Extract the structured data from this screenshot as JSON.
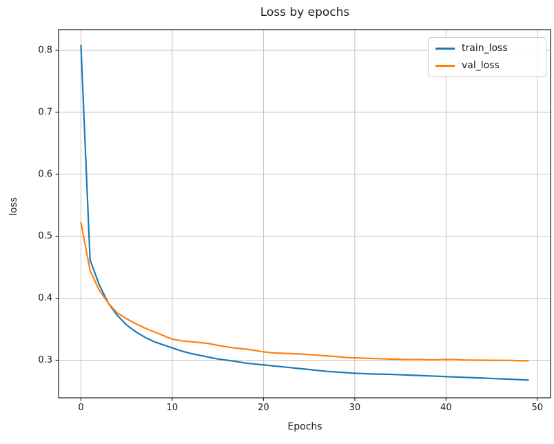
{
  "chart_data": {
    "type": "line",
    "title": "Loss by epochs",
    "xlabel": "Epochs",
    "ylabel": "loss",
    "x": [
      0,
      1,
      2,
      3,
      4,
      5,
      6,
      7,
      8,
      9,
      10,
      11,
      12,
      13,
      14,
      15,
      16,
      17,
      18,
      19,
      20,
      21,
      22,
      23,
      24,
      25,
      26,
      27,
      28,
      29,
      30,
      31,
      32,
      33,
      34,
      35,
      36,
      37,
      38,
      39,
      40,
      41,
      42,
      43,
      44,
      45,
      46,
      47,
      48,
      49
    ],
    "series": [
      {
        "name": "train_loss",
        "color": "#1f77b4",
        "values": [
          0.808,
          0.462,
          0.422,
          0.392,
          0.372,
          0.357,
          0.346,
          0.337,
          0.33,
          0.325,
          0.32,
          0.315,
          0.311,
          0.308,
          0.305,
          0.302,
          0.3,
          0.298,
          0.2955,
          0.294,
          0.2925,
          0.291,
          0.2895,
          0.288,
          0.2865,
          0.285,
          0.2835,
          0.282,
          0.281,
          0.28,
          0.279,
          0.2784,
          0.2778,
          0.2775,
          0.2772,
          0.2766,
          0.276,
          0.2754,
          0.2748,
          0.2742,
          0.2736,
          0.273,
          0.2724,
          0.2718,
          0.2712,
          0.2706,
          0.27,
          0.2694,
          0.2687,
          0.268
        ]
      },
      {
        "name": "val_loss",
        "color": "#ff7f0e",
        "values": [
          0.522,
          0.445,
          0.413,
          0.392,
          0.376,
          0.367,
          0.359,
          0.352,
          0.346,
          0.34,
          0.334,
          0.3315,
          0.33,
          0.3285,
          0.327,
          0.324,
          0.3215,
          0.3195,
          0.318,
          0.316,
          0.3135,
          0.312,
          0.3113,
          0.3107,
          0.31,
          0.309,
          0.308,
          0.307,
          0.306,
          0.3045,
          0.3038,
          0.3033,
          0.3028,
          0.3023,
          0.3018,
          0.3014,
          0.301,
          0.3013,
          0.3008,
          0.3006,
          0.3012,
          0.301,
          0.3003,
          0.3001,
          0.3,
          0.2999,
          0.2998,
          0.2997,
          0.2992,
          0.299
        ]
      }
    ],
    "xlim": [
      -2.45,
      51.45
    ],
    "ylim": [
      0.2394,
      0.8333
    ],
    "xticks": [
      0,
      10,
      20,
      30,
      40,
      50
    ],
    "xticklabels": [
      "0",
      "10",
      "20",
      "30",
      "40",
      "50"
    ],
    "yticks": [
      0.3,
      0.4,
      0.5,
      0.6,
      0.7,
      0.8
    ],
    "yticklabels": [
      "0.3",
      "0.4",
      "0.5",
      "0.6",
      "0.7",
      "0.8"
    ],
    "grid": true,
    "legend_position": "upper-right",
    "colors": {
      "grid": "#c2c2c2",
      "spine": "#2a2a2a",
      "tick": "#2a2a2a",
      "text": "#1a1a1a",
      "background": "#ffffff",
      "legend_border": "#cccccc"
    }
  }
}
